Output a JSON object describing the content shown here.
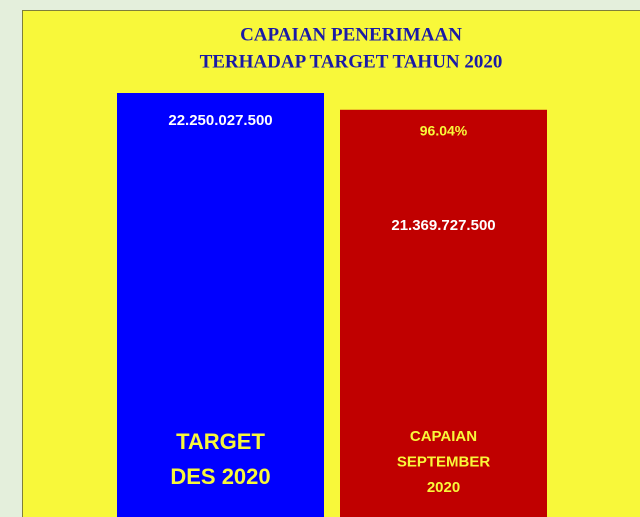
{
  "chart_data": {
    "type": "bar",
    "title": [
      "CAPAIAN PENERIMAAN",
      "TERHADAP TARGET TAHUN 2020"
    ],
    "categories": [
      "TARGET\nDES 2020",
      "CAPAIAN\nSEPTEMBER\n2020"
    ],
    "values": [
      22250027500,
      21369727500
    ],
    "value_labels": [
      "22.250.027.500",
      "21.369.727.500"
    ],
    "colors": [
      "#0000ff",
      "#c00000"
    ],
    "annotation": "96.04%"
  }
}
